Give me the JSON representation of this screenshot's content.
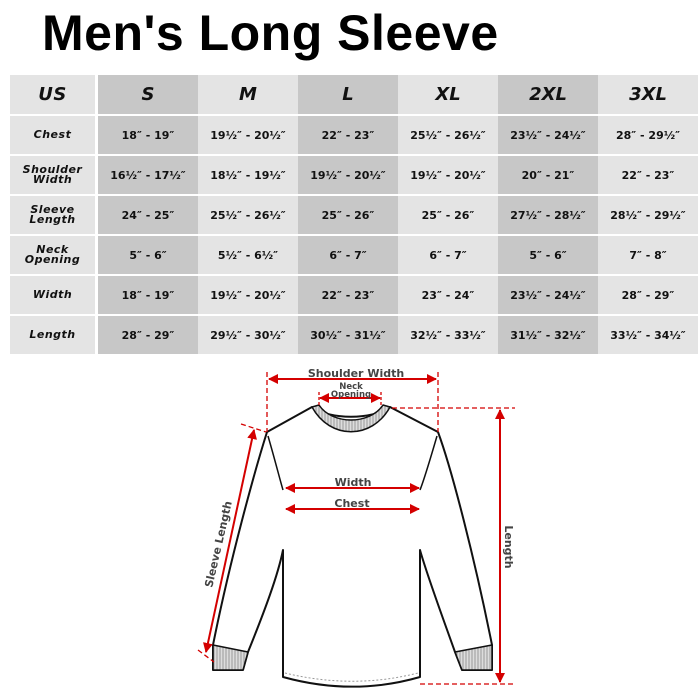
{
  "title": "Men's Long Sleeve",
  "table": {
    "corner": "US",
    "sizes": [
      "S",
      "M",
      "L",
      "XL",
      "2XL",
      "3XL"
    ],
    "rows": [
      {
        "label": [
          "Chest"
        ],
        "values": [
          "18″ - 19″",
          "19½″ - 20½″",
          "22″ - 23″",
          "25½″ - 26½″",
          "23½″ - 24½″",
          "28″ - 29½″"
        ]
      },
      {
        "label": [
          "Shoulder",
          "Width"
        ],
        "values": [
          "16½″ - 17½″",
          "18½″ - 19½″",
          "19½″ - 20½″",
          "19½″ - 20½″",
          "20″ - 21″",
          "22″ - 23″"
        ]
      },
      {
        "label": [
          "Sleeve",
          "Length"
        ],
        "values": [
          "24″ - 25″",
          "25½″ - 26½″",
          "25″ - 26″",
          "25″ - 26″",
          "27½″ - 28½″",
          "28½″ - 29½″"
        ]
      },
      {
        "label": [
          "Neck",
          "Opening"
        ],
        "values": [
          "5″ - 6″",
          "5½″ - 6½″",
          "6″ - 7″",
          "6″ - 7″",
          "5″ - 6″",
          "7″ - 8″"
        ]
      },
      {
        "label": [
          "Width"
        ],
        "values": [
          "18″ - 19″",
          "19½″ - 20½″",
          "22″ - 23″",
          "23″ - 24″",
          "23½″ - 24½″",
          "28″ - 29″"
        ]
      },
      {
        "label": [
          "Length"
        ],
        "values": [
          "28″ - 29″",
          "29½″ - 30½″",
          "30½″ - 31½″",
          "32½″ - 33½″",
          "31½″ - 32½″",
          "33½″ - 34½″"
        ]
      }
    ]
  },
  "diagram": {
    "shoulder_width": "Shoulder Width",
    "neck_line1": "Neck",
    "neck_line2": "Opening",
    "width": "Width",
    "chest": "Chest",
    "sleeve_length": "Sleeve Length",
    "length": "Length",
    "measure_color": "#d40000"
  }
}
